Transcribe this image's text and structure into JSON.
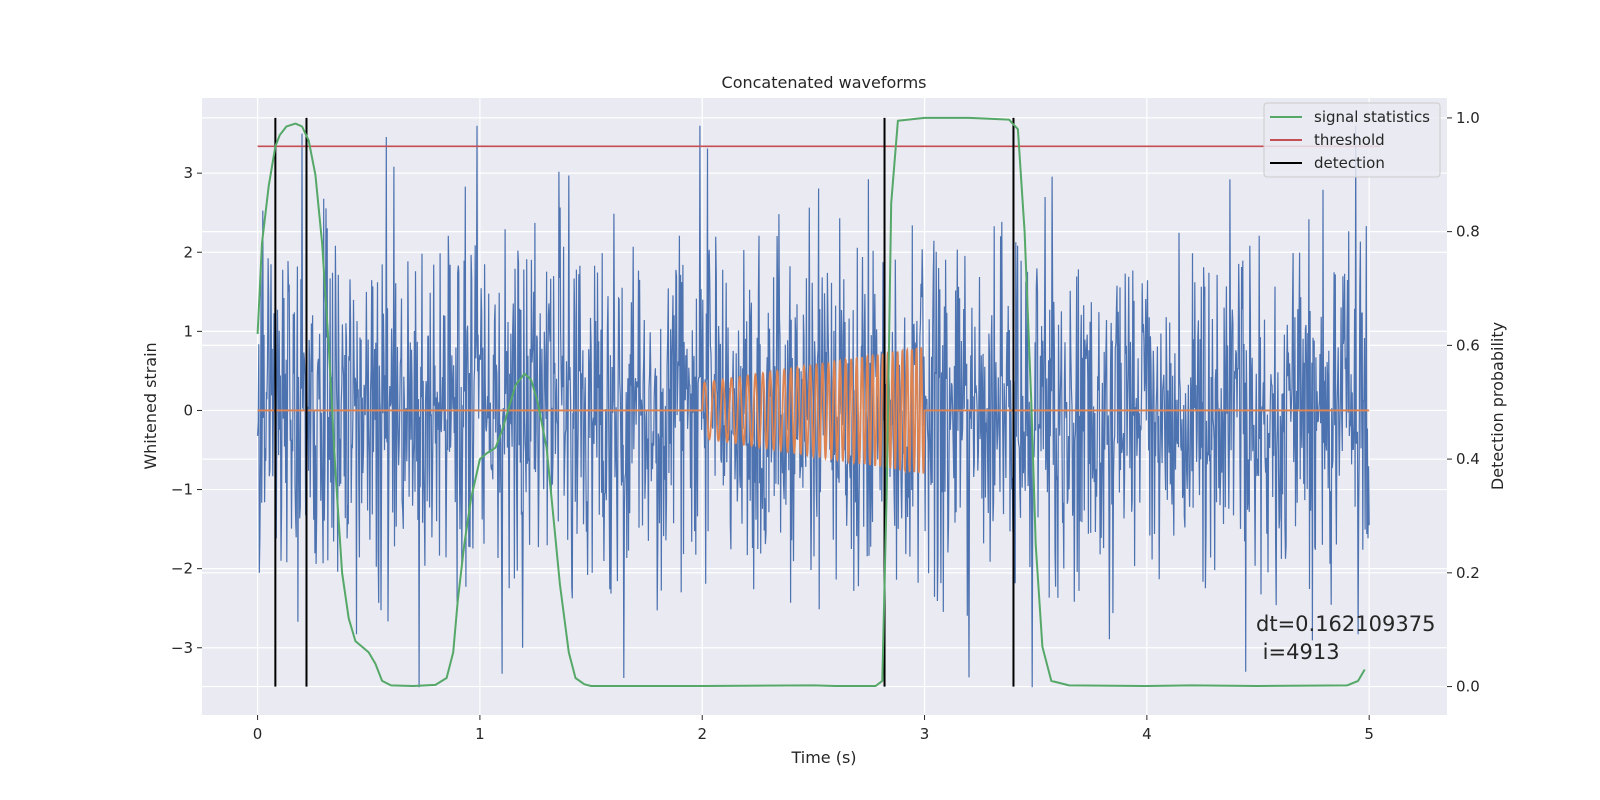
{
  "chart_data": {
    "type": "line",
    "title": "Concatenated waveforms",
    "xlabel": "Time (s)",
    "ylabel": "Whitened strain",
    "ylabel_right": "Detection probability",
    "xlim": [
      -0.25,
      5.35
    ],
    "ylim": [
      -3.85,
      3.95
    ],
    "ylim_right": [
      -0.05,
      1.035
    ],
    "xticks": [
      0,
      1,
      2,
      3,
      4,
      5
    ],
    "yticks": [
      -3,
      -2,
      -1,
      0,
      1,
      2,
      3
    ],
    "yticks_right": [
      0.0,
      0.2,
      0.4,
      0.6,
      0.8,
      1.0
    ],
    "xtick_labels": [
      "0",
      "1",
      "2",
      "3",
      "4",
      "5"
    ],
    "ytick_labels": [
      "−3",
      "−2",
      "−1",
      "0",
      "1",
      "2",
      "3"
    ],
    "ytick_labels_right": [
      "0.0",
      "0.2",
      "0.4",
      "0.6",
      "0.8",
      "1.0"
    ],
    "grid": true,
    "legend_position": "top-right",
    "legend": [
      "signal statistics",
      "threshold",
      "detection"
    ],
    "colors": {
      "strain": "#4c72b0",
      "injection": "#dd8452",
      "signal_statistics": "#55a868",
      "threshold": "#c44e52",
      "detection": "#000000",
      "background": "#eaeaf2",
      "grid": "#ffffff"
    },
    "strain_noise": {
      "x_range": [
        0,
        5
      ],
      "typical_band": [
        -0.65,
        0.75
      ],
      "max_excursion": [
        -3.5,
        3.6
      ]
    },
    "injection": {
      "x_range": [
        2.0,
        3.0
      ],
      "amplitude_start": 0.35,
      "amplitude_end": 0.8
    },
    "threshold": {
      "y": 0.95,
      "x_range": [
        0,
        5.05
      ]
    },
    "detections": [
      0.08,
      0.22,
      2.82,
      3.4
    ],
    "signal_statistics": {
      "x": [
        0,
        0.02,
        0.05,
        0.08,
        0.1,
        0.13,
        0.17,
        0.2,
        0.23,
        0.26,
        0.29,
        0.32,
        0.35,
        0.38,
        0.41,
        0.44,
        0.47,
        0.5,
        0.53,
        0.56,
        0.6,
        0.7,
        0.8,
        0.85,
        0.88,
        0.9,
        0.93,
        0.96,
        1.0,
        1.03,
        1.07,
        1.1,
        1.13,
        1.16,
        1.2,
        1.23,
        1.26,
        1.3,
        1.33,
        1.36,
        1.4,
        1.43,
        1.47,
        1.5,
        1.6,
        2.0,
        2.5,
        2.6,
        2.78,
        2.81,
        2.83,
        2.85,
        2.88,
        3.0,
        3.2,
        3.38,
        3.42,
        3.45,
        3.48,
        3.5,
        3.53,
        3.57,
        3.65,
        4.0,
        4.2,
        4.5,
        4.9,
        4.95,
        4.98
      ],
      "y": [
        0.62,
        0.78,
        0.88,
        0.95,
        0.97,
        0.985,
        0.99,
        0.985,
        0.96,
        0.9,
        0.78,
        0.6,
        0.38,
        0.2,
        0.12,
        0.08,
        0.07,
        0.06,
        0.04,
        0.01,
        0.002,
        0.001,
        0.003,
        0.015,
        0.06,
        0.15,
        0.25,
        0.33,
        0.4,
        0.41,
        0.42,
        0.45,
        0.49,
        0.53,
        0.55,
        0.54,
        0.5,
        0.42,
        0.3,
        0.18,
        0.06,
        0.015,
        0.004,
        0.001,
        0.001,
        0.001,
        0.002,
        0.001,
        0.001,
        0.01,
        0.35,
        0.85,
        0.995,
        1.0,
        1.0,
        0.997,
        0.98,
        0.8,
        0.5,
        0.25,
        0.07,
        0.01,
        0.002,
        0.001,
        0.002,
        0.001,
        0.002,
        0.01,
        0.03
      ]
    },
    "annotations": [
      "dt=0.162109375",
      " i=4913"
    ]
  }
}
